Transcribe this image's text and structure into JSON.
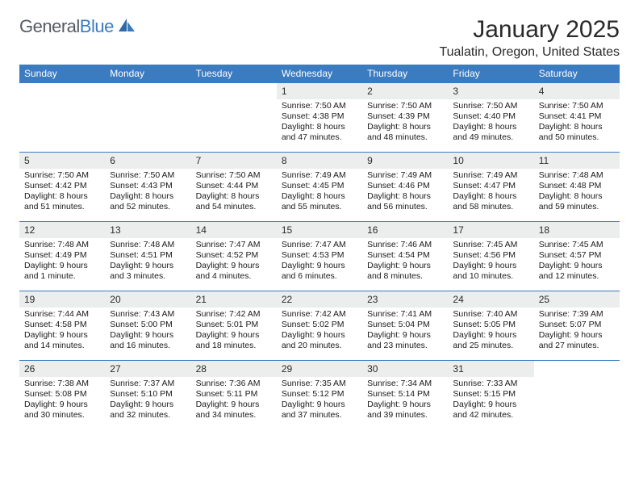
{
  "logo": {
    "text_general": "General",
    "text_blue": "Blue"
  },
  "title": "January 2025",
  "location": "Tualatin, Oregon, United States",
  "colors": {
    "header_bg": "#3b7bbf",
    "header_text": "#ffffff",
    "daynum_bg": "#eceded",
    "body_text": "#1a1a1a",
    "page_bg": "#ffffff",
    "cell_border": "#3b7bbf"
  },
  "typography": {
    "title_fontsize": 30,
    "location_fontsize": 16,
    "day_header_fontsize": 12,
    "cell_fontsize": 10.5
  },
  "layout": {
    "columns": 7,
    "rows": 5,
    "first_weekday_index": 3
  },
  "day_headers": [
    "Sunday",
    "Monday",
    "Tuesday",
    "Wednesday",
    "Thursday",
    "Friday",
    "Saturday"
  ],
  "days": [
    {
      "n": "1",
      "sunrise": "Sunrise: 7:50 AM",
      "sunset": "Sunset: 4:38 PM",
      "daylight": "Daylight: 8 hours and 47 minutes."
    },
    {
      "n": "2",
      "sunrise": "Sunrise: 7:50 AM",
      "sunset": "Sunset: 4:39 PM",
      "daylight": "Daylight: 8 hours and 48 minutes."
    },
    {
      "n": "3",
      "sunrise": "Sunrise: 7:50 AM",
      "sunset": "Sunset: 4:40 PM",
      "daylight": "Daylight: 8 hours and 49 minutes."
    },
    {
      "n": "4",
      "sunrise": "Sunrise: 7:50 AM",
      "sunset": "Sunset: 4:41 PM",
      "daylight": "Daylight: 8 hours and 50 minutes."
    },
    {
      "n": "5",
      "sunrise": "Sunrise: 7:50 AM",
      "sunset": "Sunset: 4:42 PM",
      "daylight": "Daylight: 8 hours and 51 minutes."
    },
    {
      "n": "6",
      "sunrise": "Sunrise: 7:50 AM",
      "sunset": "Sunset: 4:43 PM",
      "daylight": "Daylight: 8 hours and 52 minutes."
    },
    {
      "n": "7",
      "sunrise": "Sunrise: 7:50 AM",
      "sunset": "Sunset: 4:44 PM",
      "daylight": "Daylight: 8 hours and 54 minutes."
    },
    {
      "n": "8",
      "sunrise": "Sunrise: 7:49 AM",
      "sunset": "Sunset: 4:45 PM",
      "daylight": "Daylight: 8 hours and 55 minutes."
    },
    {
      "n": "9",
      "sunrise": "Sunrise: 7:49 AM",
      "sunset": "Sunset: 4:46 PM",
      "daylight": "Daylight: 8 hours and 56 minutes."
    },
    {
      "n": "10",
      "sunrise": "Sunrise: 7:49 AM",
      "sunset": "Sunset: 4:47 PM",
      "daylight": "Daylight: 8 hours and 58 minutes."
    },
    {
      "n": "11",
      "sunrise": "Sunrise: 7:48 AM",
      "sunset": "Sunset: 4:48 PM",
      "daylight": "Daylight: 8 hours and 59 minutes."
    },
    {
      "n": "12",
      "sunrise": "Sunrise: 7:48 AM",
      "sunset": "Sunset: 4:49 PM",
      "daylight": "Daylight: 9 hours and 1 minute."
    },
    {
      "n": "13",
      "sunrise": "Sunrise: 7:48 AM",
      "sunset": "Sunset: 4:51 PM",
      "daylight": "Daylight: 9 hours and 3 minutes."
    },
    {
      "n": "14",
      "sunrise": "Sunrise: 7:47 AM",
      "sunset": "Sunset: 4:52 PM",
      "daylight": "Daylight: 9 hours and 4 minutes."
    },
    {
      "n": "15",
      "sunrise": "Sunrise: 7:47 AM",
      "sunset": "Sunset: 4:53 PM",
      "daylight": "Daylight: 9 hours and 6 minutes."
    },
    {
      "n": "16",
      "sunrise": "Sunrise: 7:46 AM",
      "sunset": "Sunset: 4:54 PM",
      "daylight": "Daylight: 9 hours and 8 minutes."
    },
    {
      "n": "17",
      "sunrise": "Sunrise: 7:45 AM",
      "sunset": "Sunset: 4:56 PM",
      "daylight": "Daylight: 9 hours and 10 minutes."
    },
    {
      "n": "18",
      "sunrise": "Sunrise: 7:45 AM",
      "sunset": "Sunset: 4:57 PM",
      "daylight": "Daylight: 9 hours and 12 minutes."
    },
    {
      "n": "19",
      "sunrise": "Sunrise: 7:44 AM",
      "sunset": "Sunset: 4:58 PM",
      "daylight": "Daylight: 9 hours and 14 minutes."
    },
    {
      "n": "20",
      "sunrise": "Sunrise: 7:43 AM",
      "sunset": "Sunset: 5:00 PM",
      "daylight": "Daylight: 9 hours and 16 minutes."
    },
    {
      "n": "21",
      "sunrise": "Sunrise: 7:42 AM",
      "sunset": "Sunset: 5:01 PM",
      "daylight": "Daylight: 9 hours and 18 minutes."
    },
    {
      "n": "22",
      "sunrise": "Sunrise: 7:42 AM",
      "sunset": "Sunset: 5:02 PM",
      "daylight": "Daylight: 9 hours and 20 minutes."
    },
    {
      "n": "23",
      "sunrise": "Sunrise: 7:41 AM",
      "sunset": "Sunset: 5:04 PM",
      "daylight": "Daylight: 9 hours and 23 minutes."
    },
    {
      "n": "24",
      "sunrise": "Sunrise: 7:40 AM",
      "sunset": "Sunset: 5:05 PM",
      "daylight": "Daylight: 9 hours and 25 minutes."
    },
    {
      "n": "25",
      "sunrise": "Sunrise: 7:39 AM",
      "sunset": "Sunset: 5:07 PM",
      "daylight": "Daylight: 9 hours and 27 minutes."
    },
    {
      "n": "26",
      "sunrise": "Sunrise: 7:38 AM",
      "sunset": "Sunset: 5:08 PM",
      "daylight": "Daylight: 9 hours and 30 minutes."
    },
    {
      "n": "27",
      "sunrise": "Sunrise: 7:37 AM",
      "sunset": "Sunset: 5:10 PM",
      "daylight": "Daylight: 9 hours and 32 minutes."
    },
    {
      "n": "28",
      "sunrise": "Sunrise: 7:36 AM",
      "sunset": "Sunset: 5:11 PM",
      "daylight": "Daylight: 9 hours and 34 minutes."
    },
    {
      "n": "29",
      "sunrise": "Sunrise: 7:35 AM",
      "sunset": "Sunset: 5:12 PM",
      "daylight": "Daylight: 9 hours and 37 minutes."
    },
    {
      "n": "30",
      "sunrise": "Sunrise: 7:34 AM",
      "sunset": "Sunset: 5:14 PM",
      "daylight": "Daylight: 9 hours and 39 minutes."
    },
    {
      "n": "31",
      "sunrise": "Sunrise: 7:33 AM",
      "sunset": "Sunset: 5:15 PM",
      "daylight": "Daylight: 9 hours and 42 minutes."
    }
  ]
}
